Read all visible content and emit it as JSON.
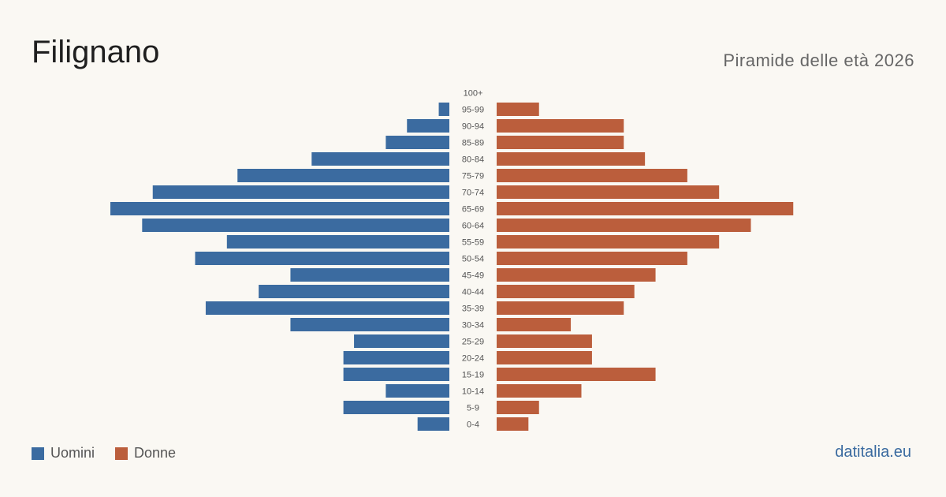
{
  "header": {
    "title": "Filignano",
    "subtitle": "Piramide delle età 2026"
  },
  "legend": {
    "men_label": "Uomini",
    "women_label": "Donne"
  },
  "brand": "datitalia.eu",
  "colors": {
    "men": "#3b6ba0",
    "women": "#bb5e3c",
    "background": "#faf8f3"
  },
  "chart_data": {
    "type": "bar",
    "orientation": "horizontal-pyramid",
    "categories": [
      "100+",
      "95-99",
      "90-94",
      "85-89",
      "80-84",
      "75-79",
      "70-74",
      "65-69",
      "60-64",
      "55-59",
      "50-54",
      "45-49",
      "40-44",
      "35-39",
      "30-34",
      "25-29",
      "20-24",
      "15-19",
      "10-14",
      "5-9",
      "0-4"
    ],
    "series": [
      {
        "name": "Uomini",
        "values": [
          0,
          1,
          4,
          6,
          13,
          20,
          28,
          32,
          29,
          21,
          24,
          15,
          18,
          23,
          15,
          9,
          10,
          10,
          6,
          10,
          3
        ]
      },
      {
        "name": "Donne",
        "values": [
          0,
          4,
          12,
          12,
          14,
          18,
          21,
          28,
          24,
          21,
          18,
          15,
          13,
          12,
          7,
          9,
          9,
          15,
          8,
          4,
          3
        ]
      }
    ],
    "xlim": [
      0,
      32
    ],
    "grid": false,
    "legend_position": "bottom-left"
  }
}
